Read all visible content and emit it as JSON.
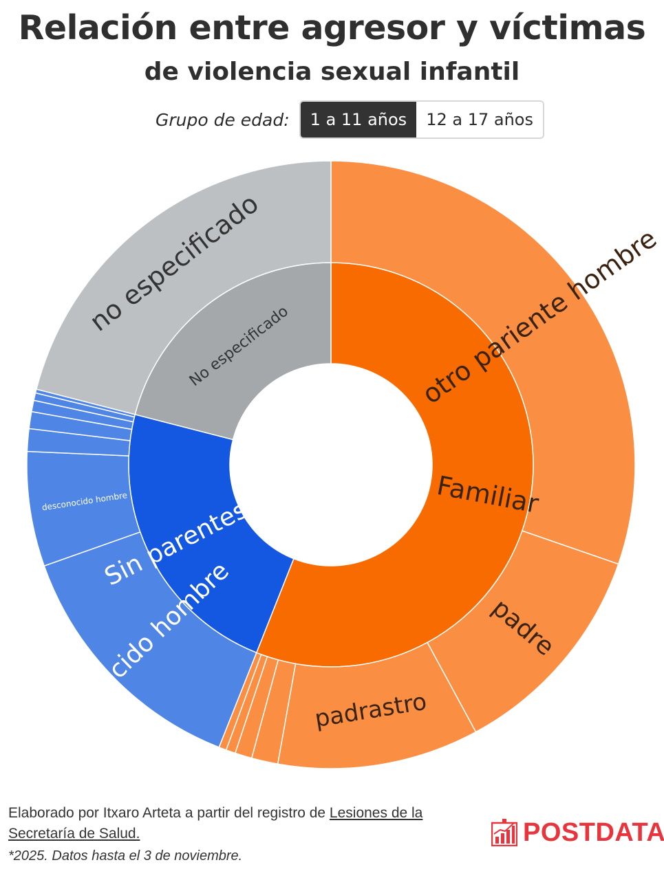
{
  "header": {
    "title": "Relación entre agresor y víctimas",
    "subtitle": "de violencia sexual infantil"
  },
  "age_filter": {
    "label": "Grupo de edad:",
    "options": [
      "1 a 11 años",
      "12 a 17 años"
    ],
    "selected": "1 a 11 años"
  },
  "chart_data": {
    "type": "sunburst",
    "inner_ring": [
      {
        "name": "Familiar",
        "value": 56.0,
        "color": "#f76b00"
      },
      {
        "name": "Sin parentesco",
        "value": 23.0,
        "color": "#1457e0"
      },
      {
        "name": "No especificado",
        "value": 21.0,
        "color": "#a5a8ab"
      }
    ],
    "outer_ring": [
      {
        "parent": "Familiar",
        "name": "otro pariente hombre",
        "value": 30.3,
        "color": "#fa8e42",
        "label": "otro pariente hombre"
      },
      {
        "parent": "Familiar",
        "name": "padre",
        "value": 11.8,
        "color": "#fa8e42",
        "label": "padre"
      },
      {
        "parent": "Familiar",
        "name": "padrastro",
        "value": 10.7,
        "color": "#fa8e42",
        "label": "padrastro"
      },
      {
        "parent": "Familiar",
        "name": "otro familiar 1",
        "value": 1.4,
        "color": "#fa8e42",
        "label": ""
      },
      {
        "parent": "Familiar",
        "name": "otro familiar 2",
        "value": 0.9,
        "color": "#fa8e42",
        "label": ""
      },
      {
        "parent": "Familiar",
        "name": "otro familiar 3",
        "value": 0.5,
        "color": "#fa8e42",
        "label": ""
      },
      {
        "parent": "Familiar",
        "name": "otro familiar 4",
        "value": 0.4,
        "color": "#fa8e42",
        "label": ""
      },
      {
        "parent": "Sin parentesco",
        "name": "conocido hombre",
        "value": 13.6,
        "color": "#4f86e6",
        "label": "conocido hombre"
      },
      {
        "parent": "Sin parentesco",
        "name": "desconocido hombre",
        "value": 6.1,
        "color": "#4f86e6",
        "label": "desconocido hombre"
      },
      {
        "parent": "Sin parentesco",
        "name": "sin parentesco 1",
        "value": 1.2,
        "color": "#4f86e6",
        "label": ""
      },
      {
        "parent": "Sin parentesco",
        "name": "sin parentesco 2",
        "value": 0.9,
        "color": "#4f86e6",
        "label": ""
      },
      {
        "parent": "Sin parentesco",
        "name": "sin parentesco 3",
        "value": 0.6,
        "color": "#4f86e6",
        "label": ""
      },
      {
        "parent": "Sin parentesco",
        "name": "sin parentesco 4",
        "value": 0.4,
        "color": "#4f86e6",
        "label": ""
      },
      {
        "parent": "Sin parentesco",
        "name": "sin parentesco 5",
        "value": 0.2,
        "color": "#4f86e6",
        "label": ""
      },
      {
        "parent": "No especificado",
        "name": "no especificado",
        "value": 21.0,
        "color": "#bdc0c3",
        "label": "no especificado"
      }
    ]
  },
  "footer": {
    "credit_prefix": "Elaborado por Itxaro Arteta a partir del registro de ",
    "credit_link": "Lesiones de la Secretaría de Salud.",
    "note": "*2025. Datos hasta el 3 de noviembre.",
    "logo": "POSTDATA",
    "logo_icon": "bar-chart-rising-icon",
    "logo_color": "#e8353d"
  }
}
